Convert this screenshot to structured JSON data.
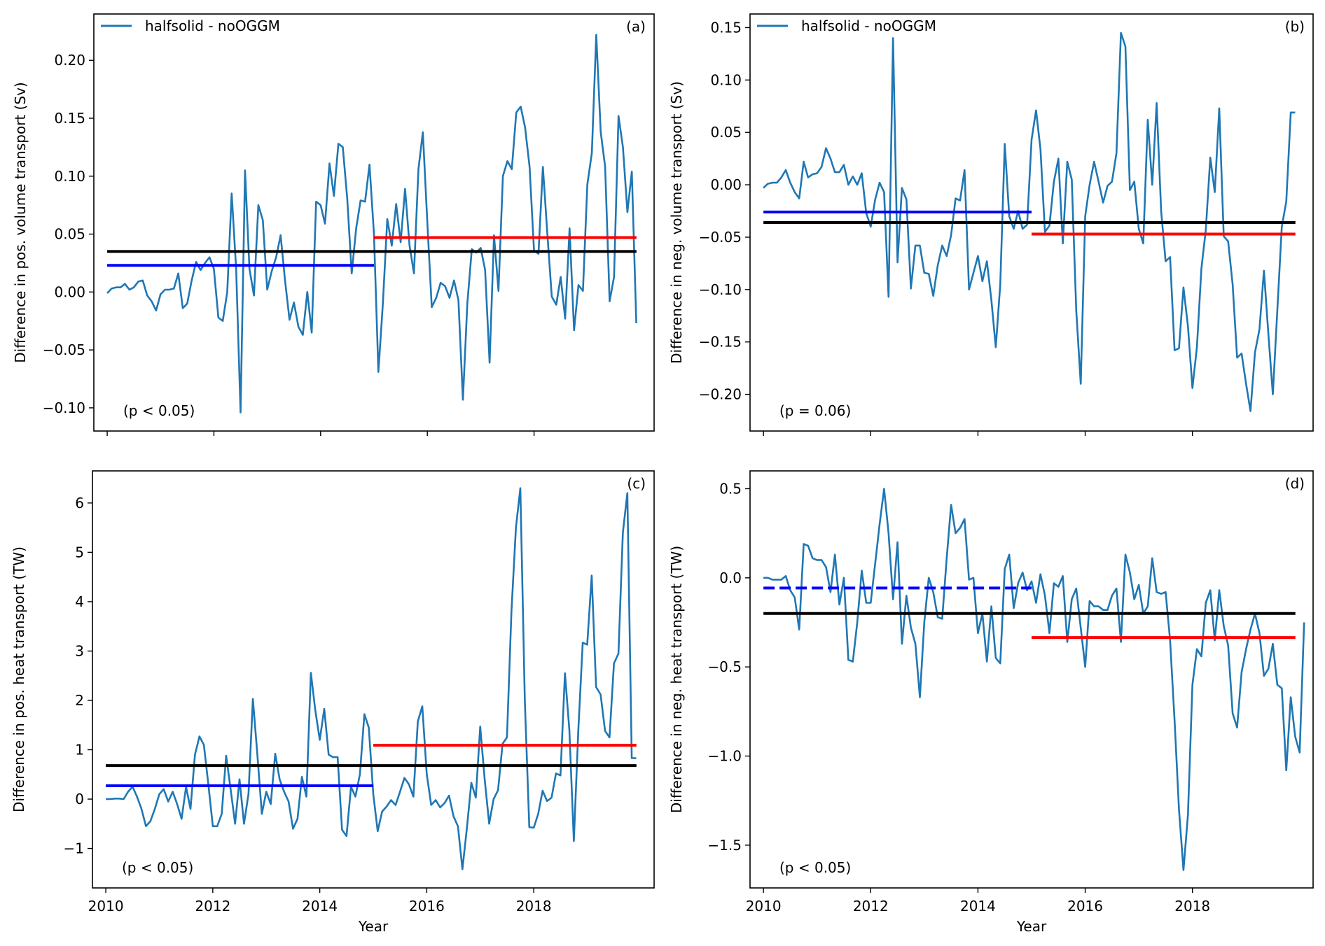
{
  "figure": {
    "legend_label": "halfsolid - noOGGM",
    "colors": {
      "series": "#1f77b4",
      "mean_full": "#000000",
      "mean_first_half": "#0000ff",
      "mean_second_half": "#ff0000"
    }
  },
  "chart_data": [
    {
      "id": "a",
      "type": "line",
      "panel_label": "(a)",
      "annotation": "(p < 0.05)",
      "xlabel": "",
      "ylabel": "Difference in pos. volume transport (Sv)",
      "xlim": [
        2009.75,
        2020.25
      ],
      "ylim": [
        -0.12,
        0.24
      ],
      "xticks": [
        2010,
        2012,
        2014,
        2016,
        2018
      ],
      "xtick_labels_visible": false,
      "yticks": [
        -0.1,
        -0.05,
        0.0,
        0.05,
        0.1,
        0.15,
        0.2
      ],
      "ytick_labels": [
        "−0.10",
        "−0.05",
        "0.00",
        "0.05",
        "0.10",
        "0.15",
        "0.20"
      ],
      "legend": {
        "entries": [
          "halfsolid - noOGGM"
        ],
        "position": "top-left"
      },
      "x_start": 2010.0,
      "x_step": 0.08333,
      "series": [
        {
          "name": "halfsolid - noOGGM",
          "values": [
            -0.001,
            0.003,
            0.004,
            0.004,
            0.007,
            0.002,
            0.004,
            0.009,
            0.01,
            -0.003,
            -0.008,
            -0.016,
            -0.002,
            0.002,
            0.002,
            0.003,
            0.016,
            -0.014,
            -0.01,
            0.01,
            0.026,
            0.019,
            0.025,
            0.03,
            0.02,
            -0.022,
            -0.025,
            0.0,
            0.085,
            0.02,
            -0.104,
            0.105,
            0.02,
            -0.003,
            0.075,
            0.062,
            0.002,
            0.018,
            0.03,
            0.049,
            0.01,
            -0.024,
            -0.009,
            -0.03,
            -0.037,
            0.0,
            -0.035,
            0.078,
            0.075,
            0.059,
            0.111,
            0.083,
            0.128,
            0.125,
            0.08,
            0.016,
            0.055,
            0.079,
            0.078,
            0.11,
            0.05,
            -0.069,
            -0.01,
            0.063,
            0.04,
            0.076,
            0.043,
            0.089,
            0.04,
            0.016,
            0.106,
            0.138,
            0.06,
            -0.013,
            -0.005,
            0.008,
            0.005,
            -0.005,
            0.01,
            -0.007,
            -0.093,
            -0.01,
            0.037,
            0.034,
            0.038,
            0.019,
            -0.061,
            0.049,
            0.001,
            0.1,
            0.113,
            0.106,
            0.155,
            0.16,
            0.142,
            0.108,
            0.036,
            0.033,
            0.108,
            0.05,
            -0.004,
            -0.011,
            0.013,
            -0.023,
            0.055,
            -0.033,
            0.006,
            0.001,
            0.093,
            0.12,
            0.222,
            0.138,
            0.108,
            -0.008,
            0.013,
            0.152,
            0.125,
            0.069,
            0.104,
            -0.027
          ]
        }
      ],
      "mean_lines": [
        {
          "name": "mean 2010-2019",
          "value": 0.035,
          "x_range": [
            2010.0,
            2019.92
          ],
          "style": "solid",
          "color": "#000000"
        },
        {
          "name": "mean 2010-2014",
          "value": 0.023,
          "x_range": [
            2010.0,
            2015.0
          ],
          "style": "solid",
          "color": "#0000ff"
        },
        {
          "name": "mean 2015-2019",
          "value": 0.047,
          "x_range": [
            2015.0,
            2019.92
          ],
          "style": "solid",
          "color": "#ff0000"
        }
      ]
    },
    {
      "id": "b",
      "type": "line",
      "panel_label": "(b)",
      "annotation": "(p = 0.06)",
      "xlabel": "",
      "ylabel": "Difference in neg. volume transport (Sv)",
      "xlim": [
        2009.75,
        2020.25
      ],
      "ylim": [
        -0.235,
        0.163
      ],
      "xticks": [
        2010,
        2012,
        2014,
        2016,
        2018
      ],
      "xtick_labels_visible": false,
      "yticks": [
        -0.2,
        -0.15,
        -0.1,
        -0.05,
        0.0,
        0.05,
        0.1,
        0.15
      ],
      "ytick_labels": [
        "−0.20",
        "−0.15",
        "−0.10",
        "−0.05",
        "0.00",
        "0.05",
        "0.10",
        "0.15"
      ],
      "legend": {
        "entries": [
          "halfsolid - noOGGM"
        ],
        "position": "top-left"
      },
      "x_start": 2010.0,
      "x_step": 0.08333,
      "series": [
        {
          "name": "halfsolid - noOGGM",
          "values": [
            -0.003,
            0.001,
            0.002,
            0.002,
            0.007,
            0.014,
            0.002,
            -0.007,
            -0.013,
            0.022,
            0.007,
            0.01,
            0.011,
            0.017,
            0.035,
            0.025,
            0.012,
            0.012,
            0.019,
            0.0,
            0.008,
            0.0,
            0.011,
            -0.027,
            -0.04,
            -0.014,
            0.002,
            -0.007,
            -0.107,
            0.14,
            -0.074,
            -0.003,
            -0.014,
            -0.099,
            -0.058,
            -0.058,
            -0.084,
            -0.085,
            -0.106,
            -0.077,
            -0.058,
            -0.068,
            -0.048,
            -0.013,
            -0.015,
            0.014,
            -0.1,
            -0.084,
            -0.068,
            -0.092,
            -0.073,
            -0.11,
            -0.155,
            -0.095,
            0.039,
            -0.03,
            -0.042,
            -0.025,
            -0.042,
            -0.038,
            0.043,
            0.071,
            0.034,
            -0.045,
            -0.039,
            0.003,
            0.025,
            -0.056,
            0.022,
            0.005,
            -0.12,
            -0.19,
            -0.03,
            0.0,
            0.022,
            0.003,
            -0.017,
            -0.001,
            0.003,
            0.03,
            0.145,
            0.132,
            -0.005,
            0.003,
            -0.042,
            -0.056,
            0.062,
            0.0,
            0.078,
            -0.025,
            -0.073,
            -0.069,
            -0.158,
            -0.156,
            -0.098,
            -0.135,
            -0.194,
            -0.155,
            -0.08,
            -0.043,
            0.026,
            -0.007,
            0.073,
            -0.049,
            -0.054,
            -0.095,
            -0.165,
            -0.161,
            -0.19,
            -0.216,
            -0.16,
            -0.138,
            -0.082,
            -0.143,
            -0.2,
            -0.12,
            -0.04,
            -0.016,
            0.069,
            0.069
          ]
        }
      ],
      "mean_lines": [
        {
          "name": "mean 2010-2019",
          "value": -0.036,
          "x_range": [
            2010.0,
            2019.92
          ],
          "style": "solid",
          "color": "#000000"
        },
        {
          "name": "mean 2010-2014",
          "value": -0.026,
          "x_range": [
            2010.0,
            2015.0
          ],
          "style": "solid",
          "color": "#0000ff"
        },
        {
          "name": "mean 2015-2019",
          "value": -0.047,
          "x_range": [
            2015.0,
            2019.92
          ],
          "style": "solid",
          "color": "#ff0000"
        }
      ]
    },
    {
      "id": "c",
      "type": "line",
      "panel_label": "(c)",
      "annotation": "(p < 0.05)",
      "xlabel": "Year",
      "ylabel": "Difference in pos. heat transport (TW)",
      "xlim": [
        2009.75,
        2020.25
      ],
      "ylim": [
        -1.8,
        6.65
      ],
      "xticks": [
        2010,
        2012,
        2014,
        2016,
        2018
      ],
      "xtick_labels": [
        "2010",
        "2012",
        "2014",
        "2016",
        "2018"
      ],
      "xtick_labels_visible": true,
      "yticks": [
        -1,
        0,
        1,
        2,
        3,
        4,
        5,
        6
      ],
      "ytick_labels": [
        "−1",
        "0",
        "1",
        "2",
        "3",
        "4",
        "5",
        "6"
      ],
      "legend": null,
      "x_start": 2010.0,
      "x_step": 0.08333,
      "series": [
        {
          "name": "halfsolid - noOGGM",
          "values": [
            0.0,
            0.0,
            0.01,
            0.01,
            0.0,
            0.15,
            0.25,
            0.05,
            -0.2,
            -0.55,
            -0.45,
            -0.2,
            0.1,
            0.2,
            -0.05,
            0.15,
            -0.1,
            -0.4,
            0.25,
            -0.2,
            0.9,
            1.27,
            1.1,
            0.3,
            -0.55,
            -0.55,
            -0.3,
            0.88,
            0.2,
            -0.5,
            0.4,
            -0.5,
            0.1,
            2.03,
            0.9,
            -0.3,
            0.15,
            -0.1,
            0.92,
            0.4,
            0.15,
            -0.05,
            -0.6,
            -0.4,
            0.45,
            0.05,
            2.56,
            1.8,
            1.2,
            1.83,
            0.9,
            0.85,
            0.85,
            -0.62,
            -0.75,
            0.25,
            0.05,
            0.5,
            1.72,
            1.45,
            0.1,
            -0.65,
            -0.25,
            -0.15,
            -0.02,
            -0.12,
            0.15,
            0.43,
            0.3,
            0.05,
            1.57,
            1.88,
            0.5,
            -0.12,
            -0.02,
            -0.17,
            -0.08,
            0.07,
            -0.35,
            -0.55,
            -1.42,
            -0.6,
            0.33,
            0.03,
            1.47,
            0.4,
            -0.5,
            0.0,
            0.18,
            1.12,
            1.25,
            3.8,
            5.5,
            6.3,
            2.0,
            -0.57,
            -0.58,
            -0.3,
            0.17,
            -0.04,
            0.03,
            0.52,
            0.48,
            2.55,
            1.4,
            -0.85,
            1.4,
            3.17,
            3.13,
            4.53,
            2.27,
            2.12,
            1.38,
            1.25,
            2.75,
            2.95,
            5.4,
            6.2,
            0.83,
            0.83
          ]
        }
      ],
      "mean_lines": [
        {
          "name": "mean 2010-2019",
          "value": 0.68,
          "x_range": [
            2010.0,
            2019.92
          ],
          "style": "solid",
          "color": "#000000"
        },
        {
          "name": "mean 2010-2014",
          "value": 0.27,
          "x_range": [
            2010.0,
            2015.0
          ],
          "style": "solid",
          "color": "#0000ff"
        },
        {
          "name": "mean 2015-2019",
          "value": 1.09,
          "x_range": [
            2015.0,
            2019.92
          ],
          "style": "solid",
          "color": "#ff0000"
        }
      ]
    },
    {
      "id": "d",
      "type": "line",
      "panel_label": "(d)",
      "annotation": "(p < 0.05)",
      "xlabel": "Year",
      "ylabel": "Difference in neg. heat transport (TW)",
      "xlim": [
        2009.75,
        2020.25
      ],
      "ylim": [
        -1.74,
        0.6
      ],
      "xticks": [
        2010,
        2012,
        2014,
        2016,
        2018
      ],
      "xtick_labels": [
        "2010",
        "2012",
        "2014",
        "2016",
        "2018"
      ],
      "xtick_labels_visible": true,
      "yticks": [
        -1.5,
        -1.0,
        -0.5,
        0.0,
        0.5
      ],
      "ytick_labels": [
        "−1.5",
        "−1.0",
        "−0.5",
        "0.0",
        "0.5"
      ],
      "legend": null,
      "x_start": 2010.0,
      "x_step": 0.08333,
      "series": [
        {
          "name": "halfsolid - noOGGM",
          "values": [
            0.0,
            0.0,
            -0.01,
            -0.01,
            -0.01,
            0.01,
            -0.07,
            -0.11,
            -0.29,
            0.19,
            0.18,
            0.11,
            0.1,
            0.1,
            0.06,
            -0.08,
            0.13,
            -0.15,
            0.0,
            -0.46,
            -0.47,
            -0.25,
            0.04,
            -0.14,
            -0.14,
            0.08,
            0.3,
            0.5,
            0.25,
            -0.12,
            0.2,
            -0.37,
            -0.1,
            -0.28,
            -0.37,
            -0.67,
            -0.25,
            -0.0,
            -0.08,
            -0.22,
            -0.23,
            0.11,
            0.41,
            0.25,
            0.28,
            0.33,
            -0.01,
            0.0,
            -0.31,
            -0.2,
            -0.47,
            -0.16,
            -0.45,
            -0.48,
            0.05,
            0.13,
            -0.17,
            -0.03,
            0.03,
            -0.07,
            -0.02,
            -0.14,
            0.02,
            -0.1,
            -0.31,
            -0.03,
            -0.05,
            0.01,
            -0.36,
            -0.12,
            -0.06,
            -0.28,
            -0.5,
            -0.13,
            -0.16,
            -0.16,
            -0.18,
            -0.18,
            -0.1,
            -0.06,
            -0.36,
            0.13,
            0.03,
            -0.12,
            -0.04,
            -0.2,
            -0.16,
            0.11,
            -0.08,
            -0.09,
            -0.08,
            -0.35,
            -0.8,
            -1.3,
            -1.64,
            -1.33,
            -0.6,
            -0.4,
            -0.44,
            -0.14,
            -0.07,
            -0.35,
            -0.07,
            -0.27,
            -0.38,
            -0.76,
            -0.84,
            -0.53,
            -0.4,
            -0.29,
            -0.2,
            -0.31,
            -0.55,
            -0.51,
            -0.37,
            -0.6,
            -0.62,
            -1.08,
            -0.67,
            -0.89,
            -0.98,
            -0.25
          ]
        }
      ],
      "mean_lines": [
        {
          "name": "mean 2010-2019",
          "value": -0.2,
          "x_range": [
            2010.0,
            2019.92
          ],
          "style": "solid",
          "color": "#000000"
        },
        {
          "name": "mean 2010-2014",
          "value": -0.057,
          "x_range": [
            2010.0,
            2015.0
          ],
          "style": "dashed",
          "color": "#0000ff"
        },
        {
          "name": "mean 2015-2019",
          "value": -0.335,
          "x_range": [
            2015.0,
            2019.92
          ],
          "style": "solid",
          "color": "#ff0000"
        }
      ]
    }
  ]
}
